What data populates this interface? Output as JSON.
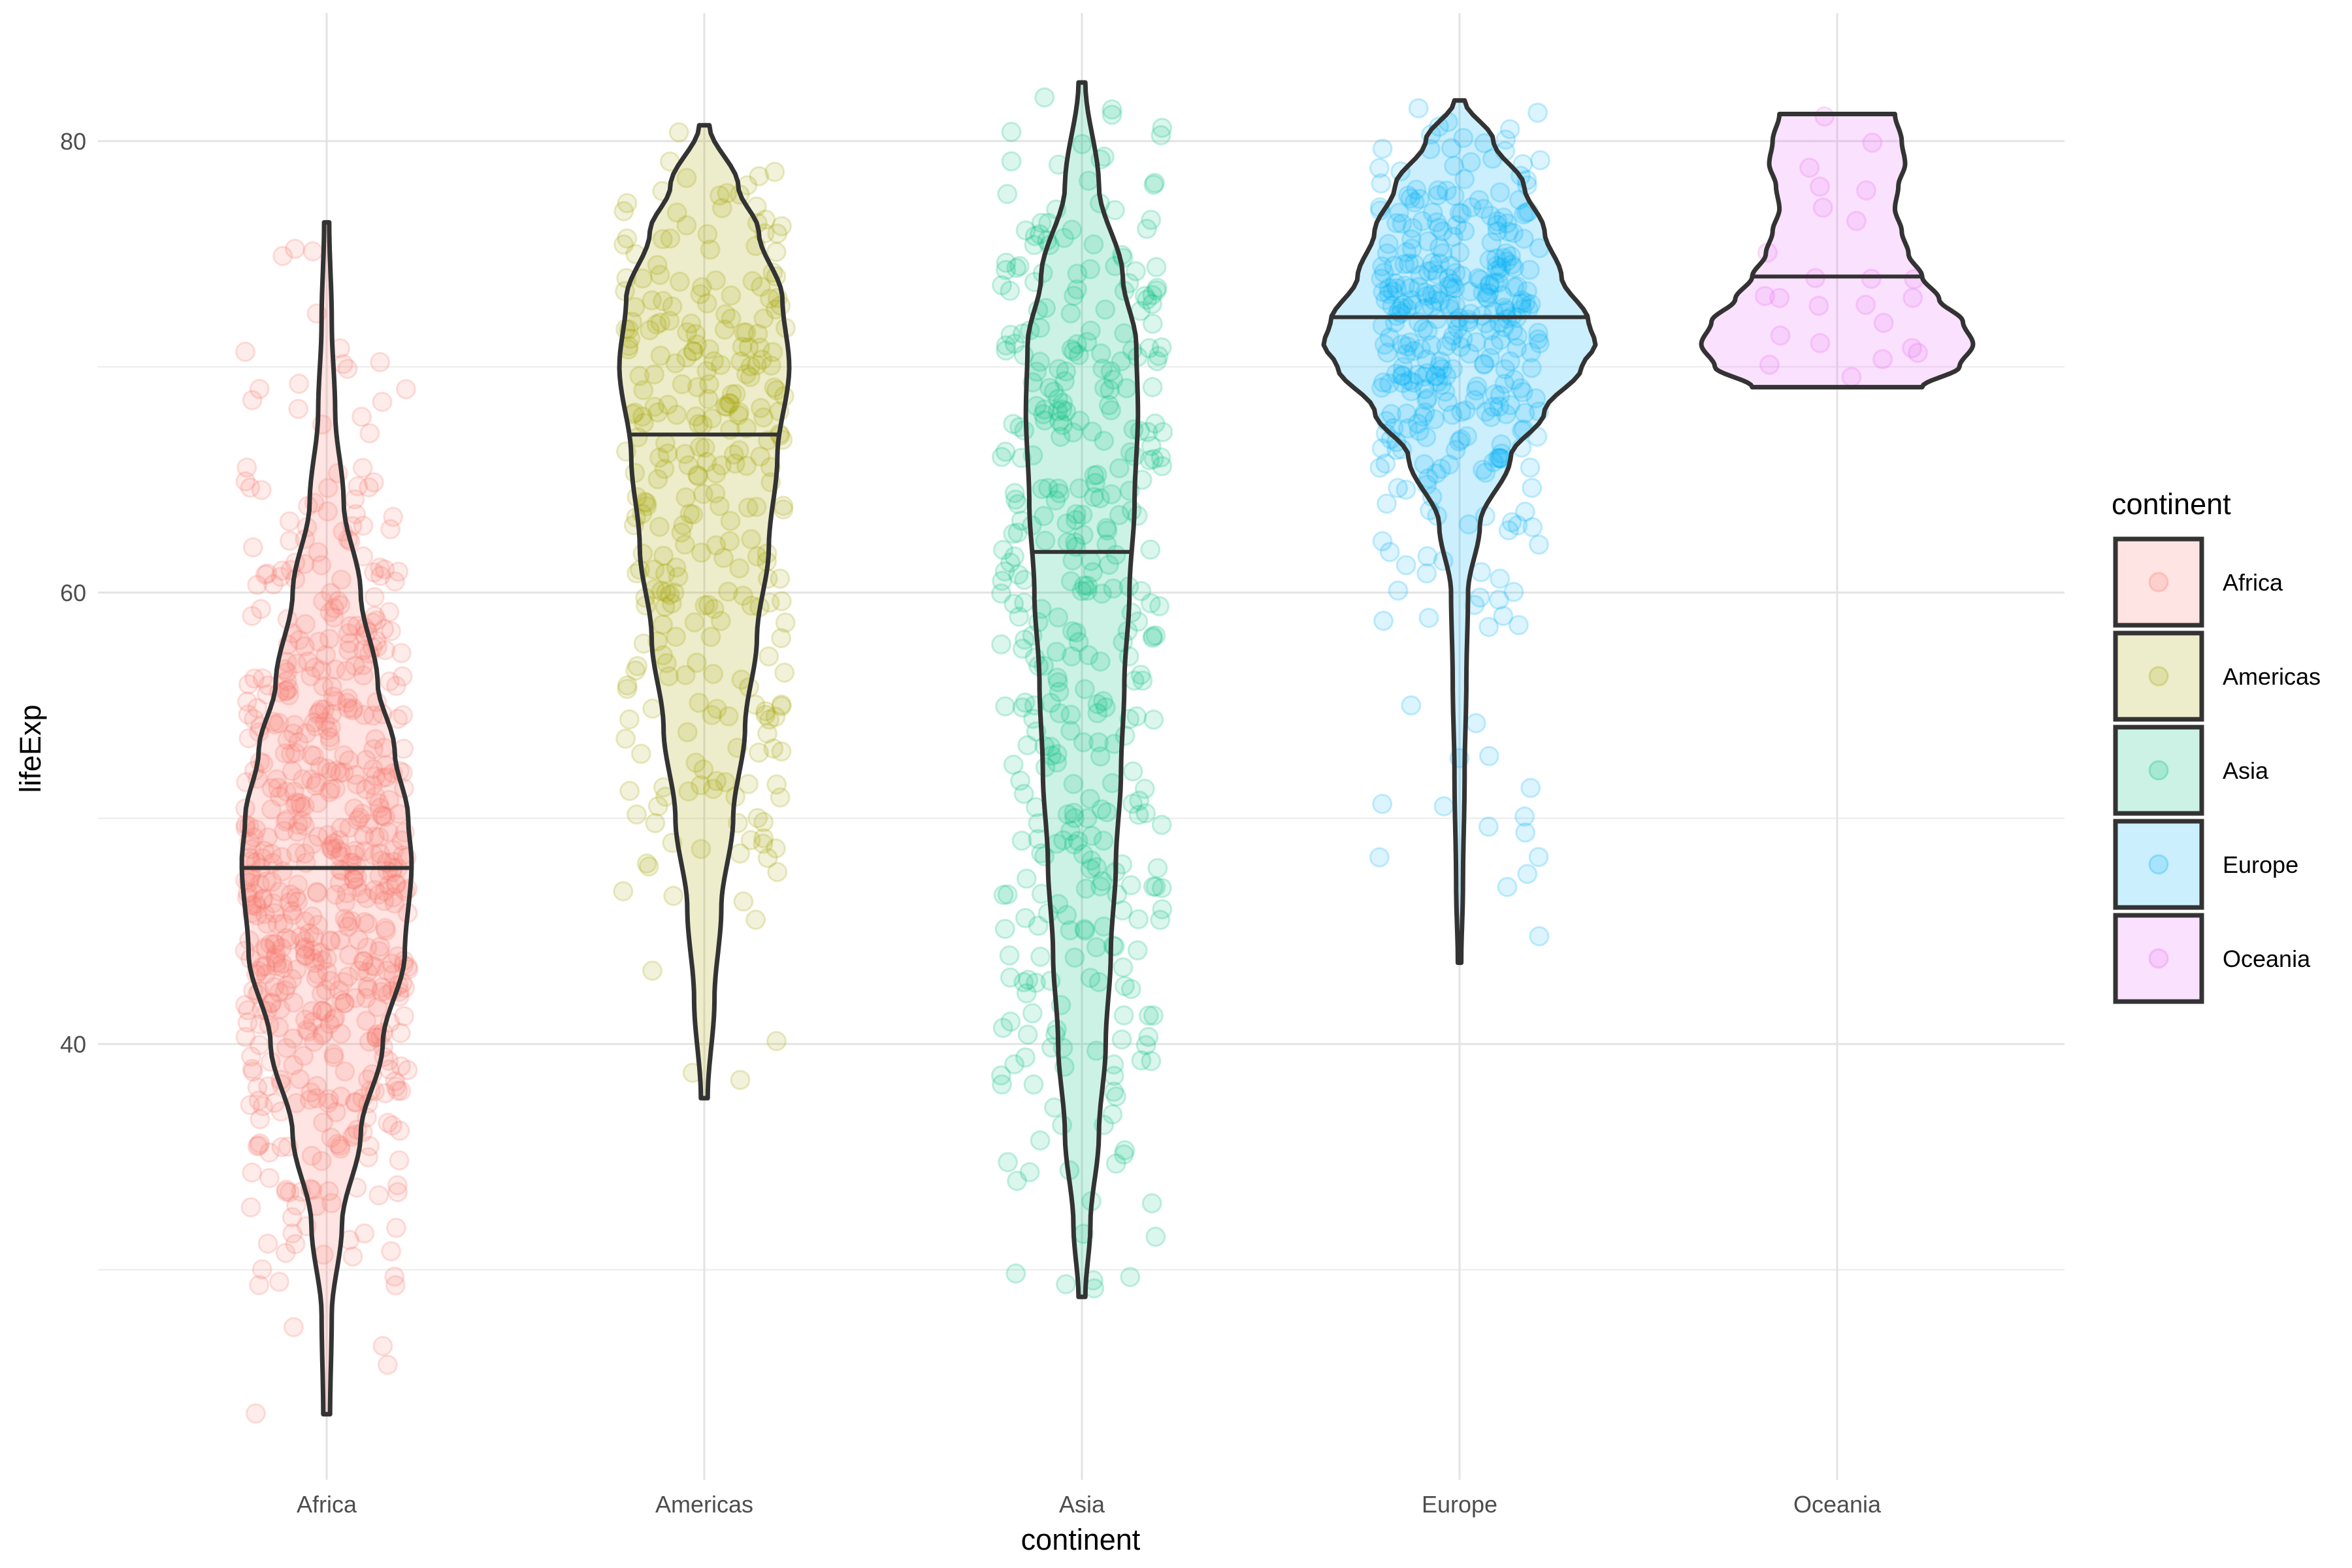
{
  "chart_data": {
    "type": "violin",
    "title": "",
    "xlabel": "continent",
    "ylabel": "lifeExp",
    "categories": [
      "Africa",
      "Americas",
      "Asia",
      "Europe",
      "Oceania"
    ],
    "y_ticks": [
      40,
      60,
      80
    ],
    "ylim": [
      22.5,
      85
    ],
    "grid": true,
    "legend": {
      "title": "continent",
      "position": "right",
      "entries": [
        "Africa",
        "Americas",
        "Asia",
        "Europe",
        "Oceania"
      ]
    },
    "colors": {
      "Africa": "#F8766D",
      "Americas": "#A3A500",
      "Asia": "#00BF7D",
      "Europe": "#00B0F6",
      "Oceania": "#E76BF3"
    },
    "series": [
      {
        "name": "Africa",
        "min": 23.6,
        "max": 76.4,
        "median": 47.8,
        "n_points": 624,
        "density_profile": [
          [
            23.6,
            0.02
          ],
          [
            28,
            0.03
          ],
          [
            32,
            0.09
          ],
          [
            36,
            0.2
          ],
          [
            40,
            0.33
          ],
          [
            44,
            0.46
          ],
          [
            48,
            0.5
          ],
          [
            50,
            0.48
          ],
          [
            53,
            0.4
          ],
          [
            56,
            0.3
          ],
          [
            60,
            0.2
          ],
          [
            64,
            0.1
          ],
          [
            68,
            0.05
          ],
          [
            72,
            0.03
          ],
          [
            76.4,
            0.015
          ]
        ]
      },
      {
        "name": "Americas",
        "min": 37.6,
        "max": 80.7,
        "median": 67.0,
        "n_points": 300,
        "density_profile": [
          [
            37.6,
            0.02
          ],
          [
            42,
            0.06
          ],
          [
            46,
            0.1
          ],
          [
            50,
            0.17
          ],
          [
            54,
            0.24
          ],
          [
            58,
            0.31
          ],
          [
            62,
            0.38
          ],
          [
            66,
            0.43
          ],
          [
            70,
            0.5
          ],
          [
            73,
            0.46
          ],
          [
            76,
            0.32
          ],
          [
            78,
            0.2
          ],
          [
            80.7,
            0.03
          ]
        ]
      },
      {
        "name": "Asia",
        "min": 28.8,
        "max": 82.6,
        "median": 61.8,
        "n_points": 396,
        "density_profile": [
          [
            28.8,
            0.02
          ],
          [
            32,
            0.05
          ],
          [
            36,
            0.1
          ],
          [
            40,
            0.14
          ],
          [
            44,
            0.17
          ],
          [
            48,
            0.2
          ],
          [
            52,
            0.23
          ],
          [
            56,
            0.25
          ],
          [
            60,
            0.28
          ],
          [
            64,
            0.31
          ],
          [
            68,
            0.33
          ],
          [
            71,
            0.32
          ],
          [
            74,
            0.24
          ],
          [
            78,
            0.1
          ],
          [
            82.6,
            0.02
          ]
        ]
      },
      {
        "name": "Europe",
        "min": 43.6,
        "max": 81.8,
        "median": 72.2,
        "n_points": 360,
        "density_profile": [
          [
            43.6,
            0.01
          ],
          [
            47,
            0.02
          ],
          [
            52,
            0.03
          ],
          [
            56,
            0.04
          ],
          [
            60,
            0.05
          ],
          [
            63,
            0.12
          ],
          [
            66,
            0.3
          ],
          [
            68,
            0.5
          ],
          [
            70,
            0.72
          ],
          [
            71,
            0.8
          ],
          [
            72,
            0.76
          ],
          [
            74,
            0.6
          ],
          [
            76,
            0.5
          ],
          [
            78,
            0.38
          ],
          [
            80,
            0.2
          ],
          [
            81.8,
            0.03
          ]
        ]
      },
      {
        "name": "Oceania",
        "min": 69.1,
        "max": 81.2,
        "median": 74.0,
        "n_points": 24,
        "density_profile": [
          [
            69.1,
            0.5
          ],
          [
            70,
            0.72
          ],
          [
            71,
            0.8
          ],
          [
            72,
            0.74
          ],
          [
            73,
            0.6
          ],
          [
            74,
            0.5
          ],
          [
            75,
            0.42
          ],
          [
            76,
            0.38
          ],
          [
            77,
            0.34
          ],
          [
            78,
            0.36
          ],
          [
            79,
            0.4
          ],
          [
            80,
            0.38
          ],
          [
            81.2,
            0.34
          ]
        ]
      }
    ]
  }
}
